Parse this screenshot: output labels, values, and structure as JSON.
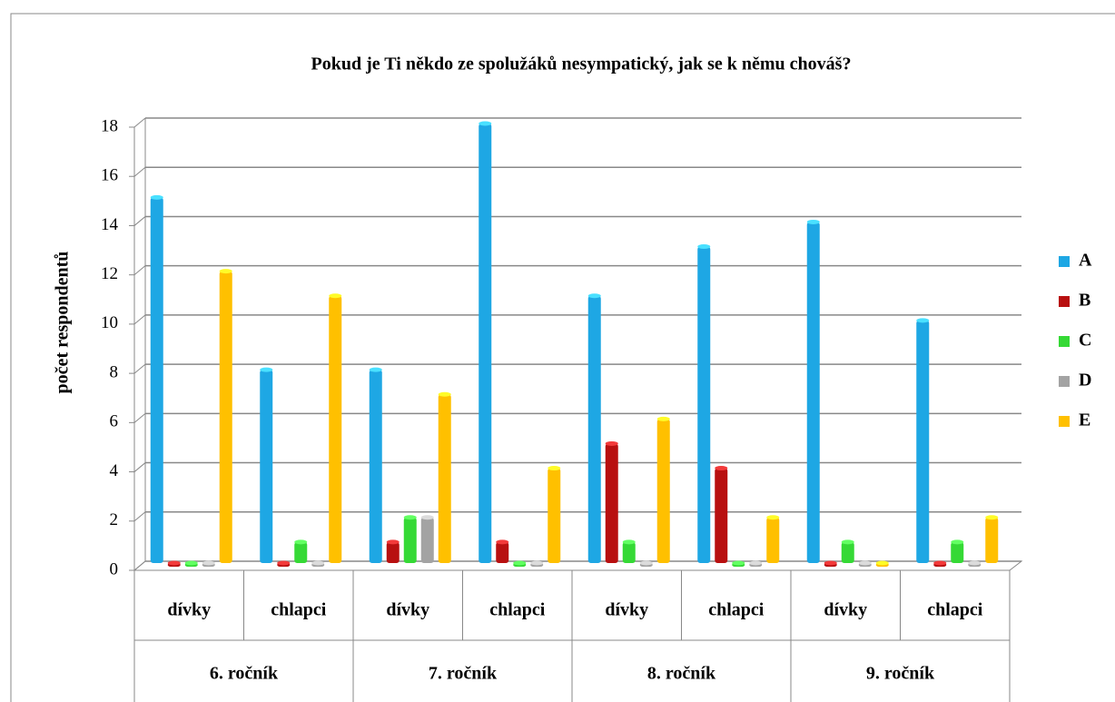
{
  "chart_data": {
    "type": "bar",
    "title": "Pokud je Ti někdo ze spolužáků nesympatický, jak se k němu chováš?",
    "ylabel": "počet respondentů",
    "categories": [
      "dívky",
      "chlapci",
      "dívky",
      "chlapci",
      "dívky",
      "chlapci",
      "dívky",
      "chlapci"
    ],
    "groups": [
      "6. ročník",
      "7. ročník",
      "8. ročník",
      "9. ročník"
    ],
    "series": [
      {
        "name": "A",
        "color": "#1ea7e4",
        "values": [
          15,
          8,
          8,
          18,
          11,
          13,
          14,
          10
        ]
      },
      {
        "name": "B",
        "color": "#b81010",
        "values": [
          0,
          0,
          1,
          1,
          5,
          4,
          0,
          0
        ]
      },
      {
        "name": "C",
        "color": "#35d935",
        "values": [
          0,
          1,
          2,
          0,
          1,
          0,
          1,
          1
        ]
      },
      {
        "name": "D",
        "color": "#a3a3a3",
        "values": [
          0,
          0,
          2,
          0,
          0,
          0,
          0,
          0
        ]
      },
      {
        "name": "E",
        "color": "#ffc000",
        "values": [
          12,
          11,
          7,
          4,
          6,
          2,
          0,
          2
        ]
      }
    ],
    "ylim": [
      0,
      18
    ],
    "yticks": [
      0,
      2,
      4,
      6,
      8,
      10,
      12,
      14,
      16,
      18
    ],
    "grid": true,
    "legend": "right"
  }
}
